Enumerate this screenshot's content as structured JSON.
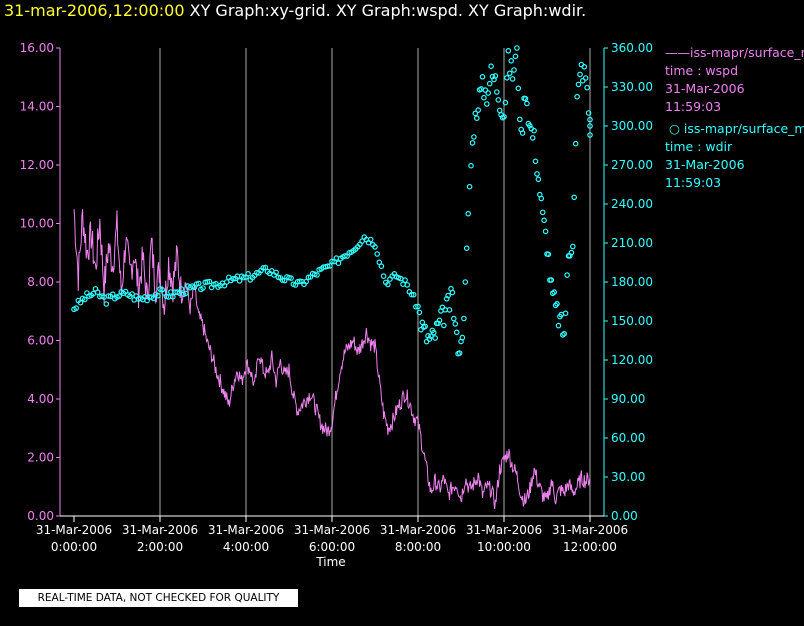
{
  "header": {
    "date_title": "31-mar-2006,12:00:00",
    "graph_titles": "XY Graph:xy-grid.  XY Graph:wspd.  XY Graph:wdir."
  },
  "colors": {
    "background": "#000000",
    "axis": "#ffffff",
    "wspd": "#ee82ee",
    "wdir": "#33ffff",
    "title_date": "#ffff33",
    "grid": "#aaaaaa"
  },
  "legend": [
    {
      "name": "iss-mapr/surface_m",
      "field": "time : wspd",
      "date": "31-Mar-2006",
      "time": "11:59:03",
      "marker": "line",
      "color": "#ee82ee"
    },
    {
      "name": "iss-mapr/surface_m",
      "field": "time : wdir",
      "date": "31-Mar-2006",
      "time": "11:59:03",
      "marker": "circle",
      "color": "#33ffff"
    }
  ],
  "disclaimer": "REAL-TIME DATA, NOT CHECKED FOR QUALITY",
  "chart_data": {
    "type": "line",
    "xlabel": "Time",
    "xlim": [
      "31-Mar-2006 0:00:00",
      "31-Mar-2006 12:00:00"
    ],
    "x_ticks": [
      {
        "date": "31-Mar-2006",
        "time": "0:00:00"
      },
      {
        "date": "31-Mar-2006",
        "time": "2:00:00"
      },
      {
        "date": "31-Mar-2006",
        "time": "4:00:00"
      },
      {
        "date": "31-Mar-2006",
        "time": "6:00:00"
      },
      {
        "date": "31-Mar-2006",
        "time": "8:00:00"
      },
      {
        "date": "31-Mar-2006",
        "time": "10:00:00"
      },
      {
        "date": "31-Mar-2006",
        "time": "12:00:00"
      }
    ],
    "grid": "vertical",
    "left_axis": {
      "ylim": [
        0,
        16
      ],
      "ticks": [
        "0.00",
        "2.00",
        "4.00",
        "6.00",
        "8.00",
        "10.00",
        "12.00",
        "14.00",
        "16.00"
      ]
    },
    "right_axis": {
      "ylim": [
        0,
        360
      ],
      "ticks": [
        "0.00",
        "30.00",
        "60.00",
        "90.00",
        "120.00",
        "150.00",
        "180.00",
        "210.00",
        "240.00",
        "270.00",
        "300.00",
        "330.00",
        "360.00"
      ]
    },
    "series": [
      {
        "name": "time : wspd",
        "axis": "left",
        "style": "line",
        "x_hours": [
          0,
          0.1,
          0.2,
          0.3,
          0.4,
          0.5,
          0.6,
          0.7,
          0.8,
          0.9,
          1.0,
          1.1,
          1.2,
          1.3,
          1.4,
          1.5,
          1.6,
          1.7,
          1.8,
          1.9,
          2.0,
          2.1,
          2.2,
          2.3,
          2.4,
          2.5,
          2.6,
          2.7,
          2.8,
          2.9,
          3.0,
          3.1,
          3.2,
          3.3,
          3.4,
          3.5,
          3.6,
          3.7,
          3.8,
          3.9,
          4.0,
          4.1,
          4.2,
          4.3,
          4.4,
          4.5,
          4.6,
          4.7,
          4.8,
          4.9,
          5.0,
          5.1,
          5.2,
          5.3,
          5.4,
          5.5,
          5.6,
          5.7,
          5.8,
          5.9,
          6.0,
          6.1,
          6.2,
          6.3,
          6.4,
          6.5,
          6.6,
          6.7,
          6.8,
          6.9,
          7.0,
          7.1,
          7.2,
          7.3,
          7.4,
          7.5,
          7.6,
          7.7,
          7.8,
          7.9,
          8.0,
          8.1,
          8.2,
          8.3,
          8.4,
          8.5,
          8.6,
          8.7,
          8.8,
          8.9,
          9.0,
          9.1,
          9.2,
          9.3,
          9.4,
          9.5,
          9.6,
          9.7,
          9.8,
          9.9,
          10.0,
          10.1,
          10.2,
          10.3,
          10.4,
          10.5,
          10.6,
          10.7,
          10.8,
          10.9,
          11.0,
          11.1,
          11.2,
          11.3,
          11.4,
          11.5,
          11.6,
          11.7,
          11.8,
          11.9,
          12.0
        ],
        "values": [
          10.5,
          8.2,
          10.3,
          9.0,
          9.6,
          8.4,
          10.1,
          7.8,
          9.2,
          8.6,
          9.9,
          7.6,
          9.4,
          8.3,
          9.0,
          7.7,
          8.8,
          7.4,
          9.3,
          7.8,
          8.5,
          7.2,
          8.7,
          7.9,
          8.9,
          7.5,
          8.0,
          7.1,
          7.8,
          6.8,
          6.5,
          5.9,
          5.5,
          5.0,
          4.6,
          4.2,
          3.8,
          4.5,
          5.0,
          4.6,
          5.2,
          5.0,
          4.4,
          5.6,
          5.0,
          4.8,
          5.4,
          4.6,
          5.3,
          4.8,
          5.0,
          4.1,
          3.6,
          3.8,
          4.0,
          4.2,
          3.8,
          3.3,
          3.0,
          2.9,
          3.2,
          4.2,
          5.1,
          5.6,
          5.8,
          6.0,
          5.6,
          5.9,
          6.3,
          5.9,
          5.8,
          4.6,
          3.5,
          3.0,
          3.2,
          3.6,
          3.9,
          4.2,
          3.9,
          3.4,
          3.2,
          2.4,
          1.6,
          0.8,
          1.2,
          0.9,
          1.3,
          0.7,
          1.0,
          1.1,
          0.6,
          1.3,
          0.9,
          1.1,
          1.4,
          0.7,
          1.0,
          0.9,
          0.4,
          1.6,
          1.9,
          2.2,
          1.7,
          1.4,
          0.7,
          0.5,
          0.9,
          1.6,
          1.1,
          0.7,
          0.5,
          1.2,
          0.6,
          0.9,
          0.8,
          1.1,
          0.8,
          1.0,
          1.3,
          1.2,
          1.3
        ]
      },
      {
        "name": "time : wdir",
        "axis": "right",
        "style": "markers",
        "x_hours": [
          0,
          0.25,
          0.5,
          0.75,
          1.0,
          1.25,
          1.5,
          1.75,
          2.0,
          2.25,
          2.5,
          2.75,
          3.0,
          3.25,
          3.5,
          3.75,
          4.0,
          4.25,
          4.5,
          4.75,
          5.0,
          5.25,
          5.5,
          5.75,
          6.0,
          6.25,
          6.5,
          6.75,
          7.0,
          7.25,
          7.5,
          7.75,
          8.0,
          8.1,
          8.2,
          8.3,
          8.4,
          8.5,
          8.6,
          8.7,
          8.8,
          8.9,
          9.0,
          9.1,
          9.2,
          9.3,
          9.4,
          9.5,
          9.6,
          9.7,
          9.8,
          9.9,
          10.0,
          10.1,
          10.2,
          10.3,
          10.4,
          10.5,
          10.6,
          10.7,
          10.8,
          10.9,
          11.0,
          11.1,
          11.2,
          11.3,
          11.4,
          11.5,
          11.6,
          11.7,
          11.8,
          11.9,
          12.0
        ],
        "values": [
          160,
          168,
          172,
          166,
          170,
          171,
          167,
          169,
          172,
          170,
          173,
          175,
          177,
          178,
          180,
          182,
          183,
          186,
          190,
          185,
          181,
          178,
          184,
          189,
          193,
          200,
          206,
          215,
          210,
          180,
          185,
          178,
          160,
          145,
          138,
          135,
          140,
          148,
          155,
          162,
          168,
          135,
          130,
          175,
          255,
          300,
          320,
          330,
          325,
          340,
          335,
          320,
          310,
          350,
          340,
          358,
          290,
          330,
          300,
          290,
          260,
          230,
          210,
          175,
          160,
          150,
          140,
          200,
          215,
          320,
          345,
          338,
          300
        ]
      }
    ]
  }
}
